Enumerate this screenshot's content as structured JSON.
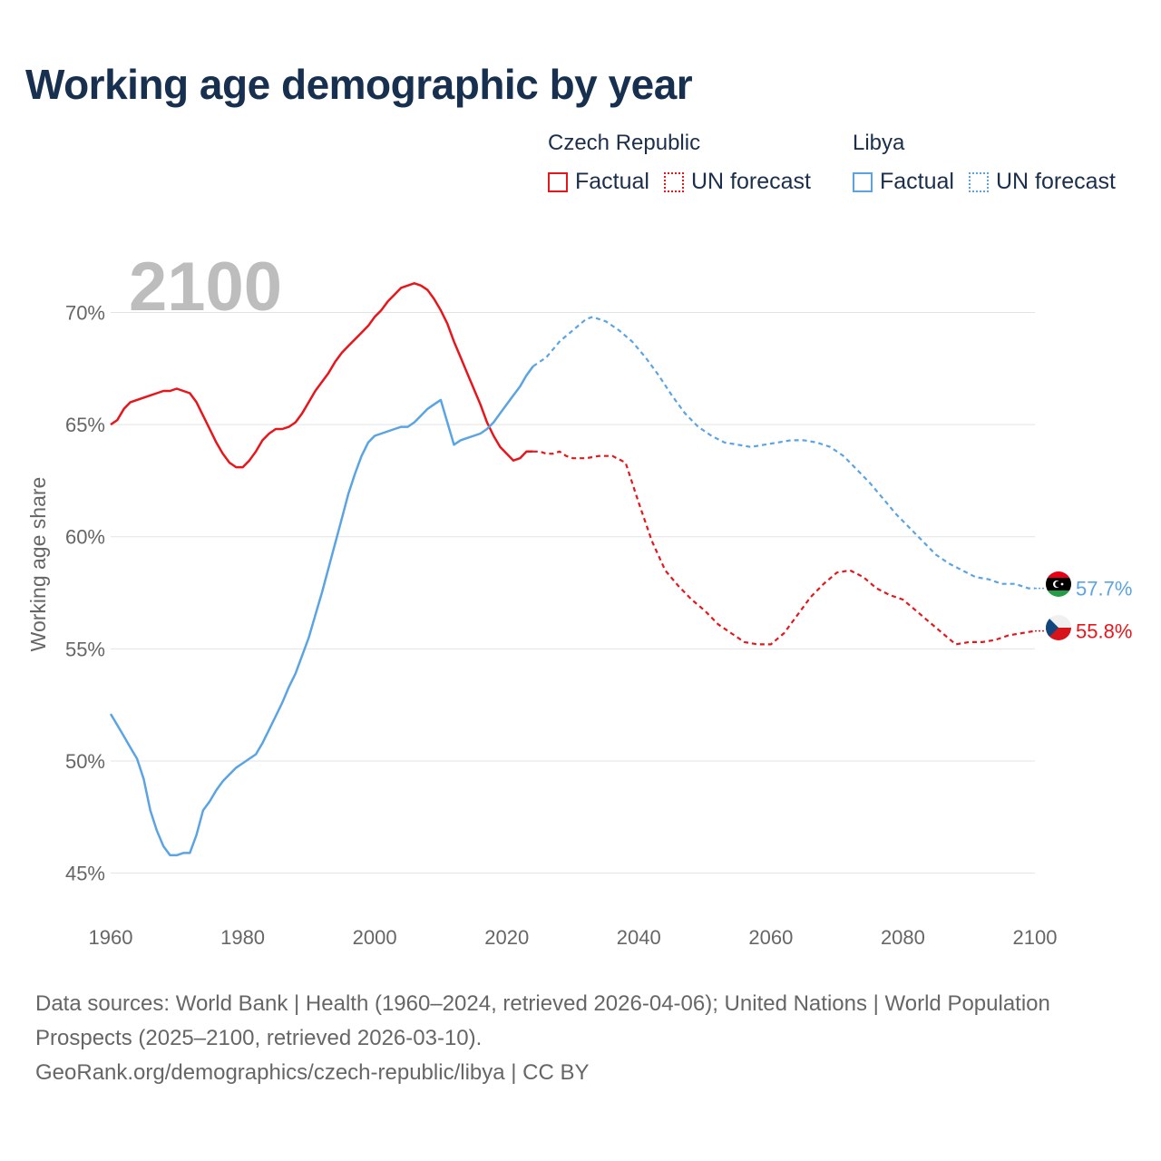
{
  "title": "Working age demographic by year",
  "legend": {
    "czech": {
      "country": "Czech Republic",
      "factual": "Factual",
      "forecast": "UN forecast",
      "color": "#e8151b"
    },
    "libya": {
      "country": "Libya",
      "factual": "Factual",
      "forecast": "UN forecast",
      "color": "#5ba4e3"
    }
  },
  "footer": {
    "sources": "Data sources: World Bank | Health (1960–2024, retrieved 2026-04-06); United Nations | World Population Prospects (2025–2100, retrieved 2026-03-10).",
    "credit": "GeoRank.org/demographics/czech-republic/libya | CC BY"
  },
  "chart_data": {
    "type": "line",
    "year_label": "2100",
    "ylabel": "Working age share",
    "xlim": [
      1960,
      2100
    ],
    "ylim": [
      44.5,
      72
    ],
    "x_ticks": [
      1960,
      1980,
      2000,
      2020,
      2040,
      2060,
      2080,
      2100
    ],
    "x_tick_labels": [
      "1960",
      "1980",
      "2000",
      "2020",
      "2040",
      "2060",
      "2080",
      "2100"
    ],
    "y_ticks": [
      45,
      50,
      55,
      60,
      65,
      70
    ],
    "y_tick_labels": [
      "45%",
      "50%",
      "55%",
      "60%",
      "65%",
      "70%"
    ],
    "factual_until": 2024,
    "series": [
      {
        "name": "Czech Republic",
        "color": "#e8151b",
        "end_label": "55.8%",
        "points": [
          [
            1960,
            65.0
          ],
          [
            1961,
            65.2
          ],
          [
            1962,
            65.7
          ],
          [
            1963,
            66.0
          ],
          [
            1964,
            66.1
          ],
          [
            1965,
            66.2
          ],
          [
            1966,
            66.3
          ],
          [
            1967,
            66.4
          ],
          [
            1968,
            66.5
          ],
          [
            1969,
            66.5
          ],
          [
            1970,
            66.6
          ],
          [
            1971,
            66.5
          ],
          [
            1972,
            66.4
          ],
          [
            1973,
            66.0
          ],
          [
            1974,
            65.4
          ],
          [
            1975,
            64.8
          ],
          [
            1976,
            64.2
          ],
          [
            1977,
            63.7
          ],
          [
            1978,
            63.3
          ],
          [
            1979,
            63.1
          ],
          [
            1980,
            63.1
          ],
          [
            1981,
            63.4
          ],
          [
            1982,
            63.8
          ],
          [
            1983,
            64.3
          ],
          [
            1984,
            64.6
          ],
          [
            1985,
            64.8
          ],
          [
            1986,
            64.8
          ],
          [
            1987,
            64.9
          ],
          [
            1988,
            65.1
          ],
          [
            1989,
            65.5
          ],
          [
            1990,
            66.0
          ],
          [
            1991,
            66.5
          ],
          [
            1992,
            66.9
          ],
          [
            1993,
            67.3
          ],
          [
            1994,
            67.8
          ],
          [
            1995,
            68.2
          ],
          [
            1996,
            68.5
          ],
          [
            1997,
            68.8
          ],
          [
            1998,
            69.1
          ],
          [
            1999,
            69.4
          ],
          [
            2000,
            69.8
          ],
          [
            2001,
            70.1
          ],
          [
            2002,
            70.5
          ],
          [
            2003,
            70.8
          ],
          [
            2004,
            71.1
          ],
          [
            2005,
            71.2
          ],
          [
            2006,
            71.3
          ],
          [
            2007,
            71.2
          ],
          [
            2008,
            71.0
          ],
          [
            2009,
            70.6
          ],
          [
            2010,
            70.1
          ],
          [
            2011,
            69.5
          ],
          [
            2012,
            68.7
          ],
          [
            2013,
            68.0
          ],
          [
            2014,
            67.3
          ],
          [
            2015,
            66.6
          ],
          [
            2016,
            65.9
          ],
          [
            2017,
            65.1
          ],
          [
            2018,
            64.5
          ],
          [
            2019,
            64.0
          ],
          [
            2020,
            63.7
          ],
          [
            2021,
            63.4
          ],
          [
            2022,
            63.5
          ],
          [
            2023,
            63.8
          ],
          [
            2024,
            63.8
          ],
          [
            2025,
            63.8
          ],
          [
            2026,
            63.7
          ],
          [
            2027,
            63.7
          ],
          [
            2028,
            63.8
          ],
          [
            2029,
            63.6
          ],
          [
            2030,
            63.5
          ],
          [
            2032,
            63.5
          ],
          [
            2034,
            63.6
          ],
          [
            2036,
            63.6
          ],
          [
            2038,
            63.3
          ],
          [
            2040,
            61.5
          ],
          [
            2042,
            59.8
          ],
          [
            2044,
            58.5
          ],
          [
            2046,
            57.8
          ],
          [
            2048,
            57.2
          ],
          [
            2050,
            56.7
          ],
          [
            2052,
            56.1
          ],
          [
            2054,
            55.7
          ],
          [
            2056,
            55.3
          ],
          [
            2058,
            55.2
          ],
          [
            2060,
            55.2
          ],
          [
            2062,
            55.7
          ],
          [
            2064,
            56.5
          ],
          [
            2066,
            57.3
          ],
          [
            2068,
            57.9
          ],
          [
            2070,
            58.4
          ],
          [
            2072,
            58.5
          ],
          [
            2074,
            58.2
          ],
          [
            2076,
            57.7
          ],
          [
            2078,
            57.4
          ],
          [
            2080,
            57.2
          ],
          [
            2082,
            56.7
          ],
          [
            2084,
            56.2
          ],
          [
            2086,
            55.7
          ],
          [
            2088,
            55.2
          ],
          [
            2090,
            55.3
          ],
          [
            2092,
            55.3
          ],
          [
            2094,
            55.4
          ],
          [
            2096,
            55.6
          ],
          [
            2098,
            55.7
          ],
          [
            2100,
            55.8
          ]
        ]
      },
      {
        "name": "Libya",
        "color": "#5ba4e3",
        "end_label": "57.7%",
        "points": [
          [
            1960,
            52.1
          ],
          [
            1961,
            51.6
          ],
          [
            1962,
            51.1
          ],
          [
            1963,
            50.6
          ],
          [
            1964,
            50.1
          ],
          [
            1965,
            49.2
          ],
          [
            1966,
            47.8
          ],
          [
            1967,
            46.9
          ],
          [
            1968,
            46.2
          ],
          [
            1969,
            45.8
          ],
          [
            1970,
            45.8
          ],
          [
            1971,
            45.9
          ],
          [
            1972,
            45.9
          ],
          [
            1973,
            46.7
          ],
          [
            1974,
            47.8
          ],
          [
            1975,
            48.2
          ],
          [
            1976,
            48.7
          ],
          [
            1977,
            49.1
          ],
          [
            1978,
            49.4
          ],
          [
            1979,
            49.7
          ],
          [
            1980,
            49.9
          ],
          [
            1981,
            50.1
          ],
          [
            1982,
            50.3
          ],
          [
            1983,
            50.8
          ],
          [
            1984,
            51.4
          ],
          [
            1985,
            52.0
          ],
          [
            1986,
            52.6
          ],
          [
            1987,
            53.3
          ],
          [
            1988,
            53.9
          ],
          [
            1989,
            54.7
          ],
          [
            1990,
            55.5
          ],
          [
            1991,
            56.5
          ],
          [
            1992,
            57.5
          ],
          [
            1993,
            58.6
          ],
          [
            1994,
            59.7
          ],
          [
            1995,
            60.8
          ],
          [
            1996,
            61.9
          ],
          [
            1997,
            62.8
          ],
          [
            1998,
            63.6
          ],
          [
            1999,
            64.2
          ],
          [
            2000,
            64.5
          ],
          [
            2001,
            64.6
          ],
          [
            2002,
            64.7
          ],
          [
            2003,
            64.8
          ],
          [
            2004,
            64.9
          ],
          [
            2005,
            64.9
          ],
          [
            2006,
            65.1
          ],
          [
            2007,
            65.4
          ],
          [
            2008,
            65.7
          ],
          [
            2009,
            65.9
          ],
          [
            2010,
            66.1
          ],
          [
            2011,
            65.1
          ],
          [
            2012,
            64.1
          ],
          [
            2013,
            64.3
          ],
          [
            2014,
            64.4
          ],
          [
            2015,
            64.5
          ],
          [
            2016,
            64.6
          ],
          [
            2017,
            64.8
          ],
          [
            2018,
            65.1
          ],
          [
            2019,
            65.5
          ],
          [
            2020,
            65.9
          ],
          [
            2021,
            66.3
          ],
          [
            2022,
            66.7
          ],
          [
            2023,
            67.2
          ],
          [
            2024,
            67.6
          ],
          [
            2026,
            68.0
          ],
          [
            2028,
            68.7
          ],
          [
            2030,
            69.2
          ],
          [
            2032,
            69.7
          ],
          [
            2033,
            69.8
          ],
          [
            2035,
            69.6
          ],
          [
            2037,
            69.2
          ],
          [
            2039,
            68.7
          ],
          [
            2041,
            68.0
          ],
          [
            2043,
            67.2
          ],
          [
            2045,
            66.3
          ],
          [
            2047,
            65.5
          ],
          [
            2049,
            64.9
          ],
          [
            2051,
            64.5
          ],
          [
            2053,
            64.2
          ],
          [
            2055,
            64.1
          ],
          [
            2057,
            64.0
          ],
          [
            2059,
            64.1
          ],
          [
            2061,
            64.2
          ],
          [
            2063,
            64.3
          ],
          [
            2065,
            64.3
          ],
          [
            2067,
            64.2
          ],
          [
            2069,
            64.0
          ],
          [
            2071,
            63.6
          ],
          [
            2073,
            63.0
          ],
          [
            2075,
            62.4
          ],
          [
            2077,
            61.7
          ],
          [
            2079,
            61.0
          ],
          [
            2081,
            60.4
          ],
          [
            2083,
            59.8
          ],
          [
            2085,
            59.2
          ],
          [
            2087,
            58.8
          ],
          [
            2089,
            58.5
          ],
          [
            2091,
            58.2
          ],
          [
            2093,
            58.1
          ],
          [
            2095,
            57.9
          ],
          [
            2097,
            57.9
          ],
          [
            2099,
            57.7
          ],
          [
            2100,
            57.7
          ]
        ]
      }
    ]
  }
}
